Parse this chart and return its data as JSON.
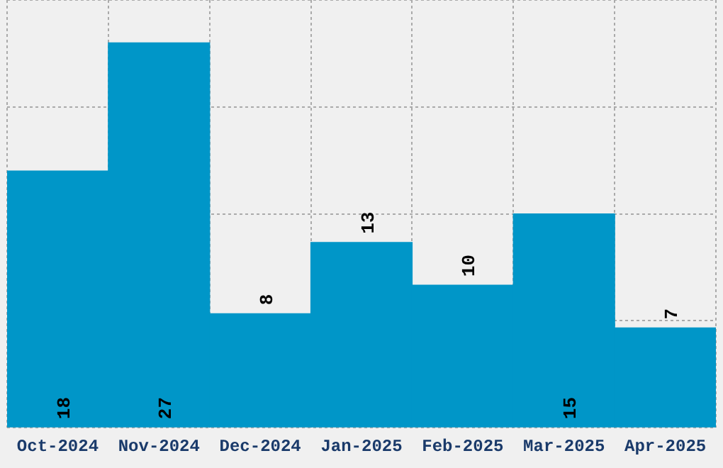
{
  "chart_data": {
    "type": "bar",
    "categories": [
      "Oct-2024",
      "Nov-2024",
      "Dec-2024",
      "Jan-2025",
      "Feb-2025",
      "Mar-2025",
      "Apr-2025"
    ],
    "values": [
      18,
      27,
      8,
      13,
      10,
      15,
      7
    ],
    "color": "#0096c8",
    "ylim": [
      0,
      30
    ],
    "yticks": [
      {
        "value": 0,
        "label": null
      },
      {
        "value": 7.5,
        "label": null
      },
      {
        "value": 15,
        "label": null
      },
      {
        "value": 22.5,
        "label": null
      },
      {
        "value": 30,
        "label": null
      }
    ],
    "tick_labels": "x",
    "grid": true,
    "data_labels": true
  }
}
